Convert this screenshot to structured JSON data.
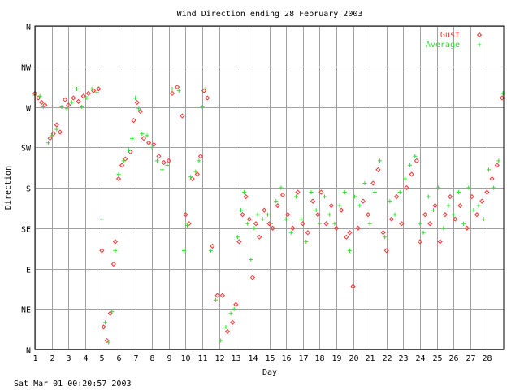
{
  "footer": {
    "timestamp": "Sat Mar 01 00:20:57 2003"
  },
  "colors": {
    "gust": "#ff3333",
    "average": "#33dd33",
    "grid": "#a0a0a0",
    "axes": "#000000",
    "background": "#ffffff"
  },
  "chart_data": {
    "type": "scatter",
    "title": "Wind Direction ending 28 February 2003",
    "xlabel": "Day",
    "ylabel": "Direction",
    "xlim": [
      1,
      29
    ],
    "ylim": [
      0,
      360
    ],
    "grid": true,
    "legend_position": "top-right",
    "x_ticks": [
      {
        "value": 1,
        "label": "1"
      },
      {
        "value": 2,
        "label": "2"
      },
      {
        "value": 3,
        "label": "3"
      },
      {
        "value": 4,
        "label": "4"
      },
      {
        "value": 5,
        "label": "5"
      },
      {
        "value": 6,
        "label": "6"
      },
      {
        "value": 7,
        "label": "7"
      },
      {
        "value": 8,
        "label": "8"
      },
      {
        "value": 9,
        "label": "9"
      },
      {
        "value": 10,
        "label": "10"
      },
      {
        "value": 11,
        "label": "11"
      },
      {
        "value": 12,
        "label": "12"
      },
      {
        "value": 13,
        "label": "13"
      },
      {
        "value": 14,
        "label": "14"
      },
      {
        "value": 15,
        "label": "15"
      },
      {
        "value": 16,
        "label": "16"
      },
      {
        "value": 17,
        "label": "17"
      },
      {
        "value": 18,
        "label": "18"
      },
      {
        "value": 19,
        "label": "19"
      },
      {
        "value": 20,
        "label": "20"
      },
      {
        "value": 21,
        "label": "21"
      },
      {
        "value": 22,
        "label": "22"
      },
      {
        "value": 23,
        "label": "23"
      },
      {
        "value": 24,
        "label": "24"
      },
      {
        "value": 25,
        "label": "25"
      },
      {
        "value": 26,
        "label": "26"
      },
      {
        "value": 27,
        "label": "27"
      },
      {
        "value": 28,
        "label": "28"
      }
    ],
    "y_ticks": [
      {
        "value": 0,
        "label": "N"
      },
      {
        "value": 45,
        "label": "NE"
      },
      {
        "value": 90,
        "label": "E"
      },
      {
        "value": 135,
        "label": "SE"
      },
      {
        "value": 180,
        "label": "S"
      },
      {
        "value": 225,
        "label": "SW"
      },
      {
        "value": 270,
        "label": "W"
      },
      {
        "value": 315,
        "label": "NW"
      },
      {
        "value": 360,
        "label": "N"
      }
    ],
    "series": [
      {
        "name": "Gust",
        "marker": "diamond",
        "points": [
          [
            1.0,
            285
          ],
          [
            1.2,
            280
          ],
          [
            1.4,
            275
          ],
          [
            1.6,
            272
          ],
          [
            1.9,
            235
          ],
          [
            2.1,
            240
          ],
          [
            2.3,
            250
          ],
          [
            2.5,
            242
          ],
          [
            2.8,
            278
          ],
          [
            3.0,
            272
          ],
          [
            3.3,
            280
          ],
          [
            3.6,
            276
          ],
          [
            3.9,
            282
          ],
          [
            4.2,
            285
          ],
          [
            4.5,
            288
          ],
          [
            4.8,
            290
          ],
          [
            5.0,
            110
          ],
          [
            5.1,
            25
          ],
          [
            5.3,
            10
          ],
          [
            5.5,
            40
          ],
          [
            5.7,
            95
          ],
          [
            5.8,
            120
          ],
          [
            6.0,
            190
          ],
          [
            6.2,
            205
          ],
          [
            6.4,
            212
          ],
          [
            6.7,
            220
          ],
          [
            6.9,
            255
          ],
          [
            7.1,
            275
          ],
          [
            7.3,
            265
          ],
          [
            7.5,
            235
          ],
          [
            7.8,
            230
          ],
          [
            8.1,
            228
          ],
          [
            8.4,
            215
          ],
          [
            8.7,
            208
          ],
          [
            9.0,
            210
          ],
          [
            9.2,
            285
          ],
          [
            9.5,
            292
          ],
          [
            9.8,
            260
          ],
          [
            10.0,
            150
          ],
          [
            10.2,
            140
          ],
          [
            10.4,
            190
          ],
          [
            10.7,
            195
          ],
          [
            10.9,
            215
          ],
          [
            11.1,
            288
          ],
          [
            11.3,
            280
          ],
          [
            11.6,
            115
          ],
          [
            11.9,
            60
          ],
          [
            12.2,
            60
          ],
          [
            12.5,
            20
          ],
          [
            12.8,
            30
          ],
          [
            13.0,
            50
          ],
          [
            13.2,
            120
          ],
          [
            13.4,
            150
          ],
          [
            13.6,
            170
          ],
          [
            13.8,
            145
          ],
          [
            14.0,
            80
          ],
          [
            14.2,
            140
          ],
          [
            14.4,
            125
          ],
          [
            14.7,
            155
          ],
          [
            15.0,
            140
          ],
          [
            15.2,
            135
          ],
          [
            15.5,
            160
          ],
          [
            15.8,
            172
          ],
          [
            16.1,
            150
          ],
          [
            16.4,
            135
          ],
          [
            16.7,
            175
          ],
          [
            17.0,
            140
          ],
          [
            17.3,
            130
          ],
          [
            17.6,
            165
          ],
          [
            17.9,
            150
          ],
          [
            18.1,
            175
          ],
          [
            18.4,
            140
          ],
          [
            18.7,
            160
          ],
          [
            19.0,
            135
          ],
          [
            19.3,
            155
          ],
          [
            19.6,
            125
          ],
          [
            19.8,
            130
          ],
          [
            20.0,
            70
          ],
          [
            20.3,
            135
          ],
          [
            20.6,
            165
          ],
          [
            20.9,
            150
          ],
          [
            21.2,
            185
          ],
          [
            21.5,
            200
          ],
          [
            21.8,
            130
          ],
          [
            22.0,
            110
          ],
          [
            22.3,
            145
          ],
          [
            22.6,
            170
          ],
          [
            22.9,
            140
          ],
          [
            23.2,
            180
          ],
          [
            23.5,
            195
          ],
          [
            23.8,
            210
          ],
          [
            24.0,
            120
          ],
          [
            24.3,
            150
          ],
          [
            24.6,
            140
          ],
          [
            24.9,
            160
          ],
          [
            25.2,
            120
          ],
          [
            25.5,
            150
          ],
          [
            25.8,
            170
          ],
          [
            26.1,
            145
          ],
          [
            26.4,
            160
          ],
          [
            26.8,
            135
          ],
          [
            27.1,
            170
          ],
          [
            27.4,
            150
          ],
          [
            27.7,
            165
          ],
          [
            28.0,
            175
          ],
          [
            28.3,
            190
          ],
          [
            28.6,
            205
          ],
          [
            28.9,
            280
          ]
        ]
      },
      {
        "name": "Average",
        "marker": "plus",
        "points": [
          [
            1.0,
            283
          ],
          [
            1.3,
            282
          ],
          [
            1.5,
            270
          ],
          [
            1.8,
            230
          ],
          [
            2.0,
            238
          ],
          [
            2.3,
            245
          ],
          [
            2.6,
            270
          ],
          [
            2.9,
            268
          ],
          [
            3.2,
            275
          ],
          [
            3.5,
            290
          ],
          [
            3.8,
            270
          ],
          [
            4.1,
            280
          ],
          [
            4.4,
            290
          ],
          [
            4.7,
            286
          ],
          [
            5.0,
            145
          ],
          [
            5.2,
            30
          ],
          [
            5.4,
            8
          ],
          [
            5.6,
            42
          ],
          [
            5.8,
            110
          ],
          [
            6.0,
            195
          ],
          [
            6.3,
            210
          ],
          [
            6.6,
            222
          ],
          [
            6.8,
            235
          ],
          [
            7.0,
            280
          ],
          [
            7.2,
            268
          ],
          [
            7.4,
            240
          ],
          [
            7.7,
            238
          ],
          [
            8.0,
            225
          ],
          [
            8.3,
            210
          ],
          [
            8.6,
            200
          ],
          [
            8.9,
            205
          ],
          [
            9.2,
            290
          ],
          [
            9.6,
            288
          ],
          [
            9.9,
            110
          ],
          [
            10.1,
            138
          ],
          [
            10.3,
            192
          ],
          [
            10.6,
            198
          ],
          [
            10.8,
            210
          ],
          [
            11.0,
            270
          ],
          [
            11.2,
            290
          ],
          [
            11.5,
            110
          ],
          [
            11.8,
            55
          ],
          [
            12.1,
            10
          ],
          [
            12.4,
            25
          ],
          [
            12.7,
            40
          ],
          [
            12.9,
            45
          ],
          [
            13.1,
            125
          ],
          [
            13.3,
            155
          ],
          [
            13.5,
            175
          ],
          [
            13.7,
            140
          ],
          [
            13.9,
            100
          ],
          [
            14.1,
            135
          ],
          [
            14.3,
            150
          ],
          [
            14.6,
            145
          ],
          [
            14.9,
            150
          ],
          [
            15.1,
            140
          ],
          [
            15.4,
            165
          ],
          [
            15.7,
            180
          ],
          [
            16.0,
            145
          ],
          [
            16.3,
            130
          ],
          [
            16.6,
            170
          ],
          [
            16.9,
            145
          ],
          [
            17.2,
            120
          ],
          [
            17.5,
            175
          ],
          [
            17.8,
            155
          ],
          [
            18.0,
            140
          ],
          [
            18.3,
            170
          ],
          [
            18.6,
            150
          ],
          [
            18.9,
            140
          ],
          [
            19.2,
            160
          ],
          [
            19.5,
            175
          ],
          [
            19.8,
            110
          ],
          [
            20.1,
            170
          ],
          [
            20.4,
            160
          ],
          [
            20.7,
            185
          ],
          [
            21.0,
            140
          ],
          [
            21.3,
            175
          ],
          [
            21.6,
            210
          ],
          [
            21.9,
            125
          ],
          [
            22.2,
            165
          ],
          [
            22.5,
            150
          ],
          [
            22.8,
            175
          ],
          [
            23.1,
            190
          ],
          [
            23.4,
            205
          ],
          [
            23.7,
            215
          ],
          [
            24.0,
            140
          ],
          [
            24.2,
            130
          ],
          [
            24.5,
            170
          ],
          [
            24.8,
            155
          ],
          [
            25.1,
            180
          ],
          [
            25.4,
            135
          ],
          [
            25.7,
            160
          ],
          [
            26.0,
            150
          ],
          [
            26.3,
            175
          ],
          [
            26.6,
            140
          ],
          [
            26.9,
            180
          ],
          [
            27.2,
            155
          ],
          [
            27.5,
            160
          ],
          [
            27.8,
            145
          ],
          [
            28.1,
            200
          ],
          [
            28.4,
            180
          ],
          [
            28.7,
            210
          ],
          [
            28.95,
            285
          ]
        ]
      }
    ]
  }
}
